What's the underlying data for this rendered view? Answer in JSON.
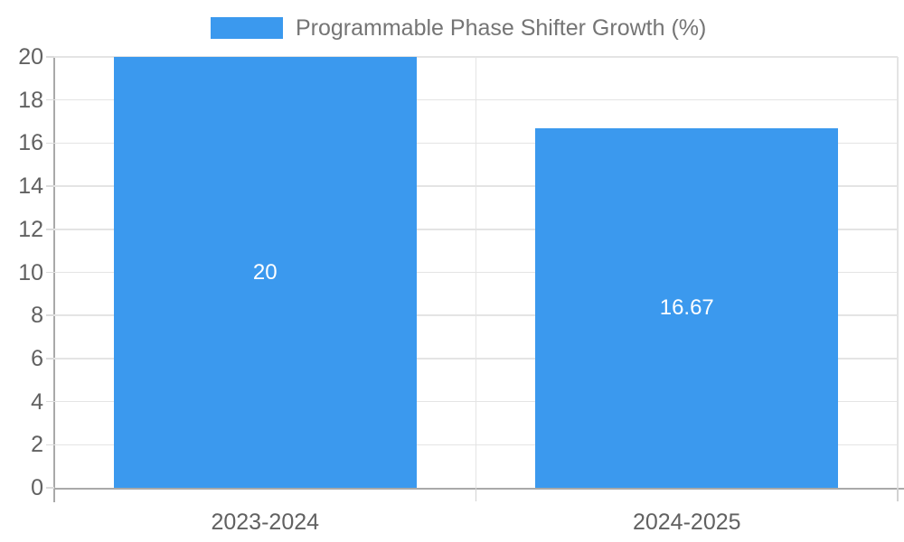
{
  "chart_data": {
    "type": "bar",
    "series_name": "Programmable Phase Shifter Growth (%)",
    "categories": [
      "2023-2024",
      "2024-2025"
    ],
    "values": [
      20,
      16.67
    ],
    "value_labels": [
      "20",
      "16.67"
    ],
    "ylim": [
      0,
      20
    ],
    "yticks": [
      0,
      2,
      4,
      6,
      8,
      10,
      12,
      14,
      16,
      18,
      20
    ],
    "grid": true,
    "legend_position": "top",
    "colors": {
      "bar": "#3b99ee",
      "grid": "#e4e4e4",
      "axis": "#a9a9a9",
      "tick_label": "#616161",
      "legend_text": "#757575",
      "bar_label": "#ffffff"
    }
  }
}
